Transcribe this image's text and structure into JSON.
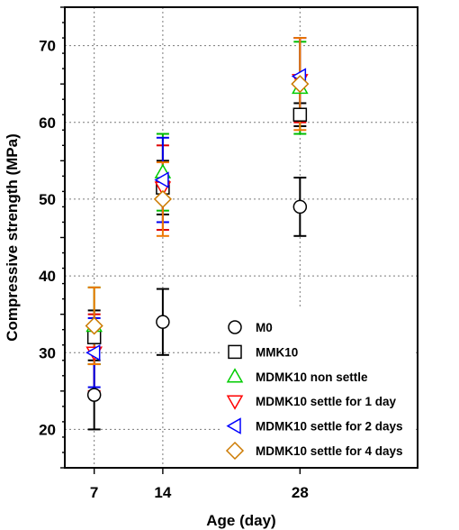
{
  "chart_data": {
    "type": "scatter",
    "title": "",
    "xlabel": "Age (day)",
    "ylabel": "Compressive strength (MPa)",
    "xlim": [
      4,
      40
    ],
    "ylim": [
      15,
      75
    ],
    "x_ticks": [
      7,
      14,
      28
    ],
    "y_ticks": [
      20,
      30,
      40,
      50,
      60,
      70
    ],
    "grid": true,
    "legend_position": "bottom-right",
    "series": [
      {
        "name": "M0",
        "marker": "circle",
        "color": "#000000",
        "error_color": "#000000",
        "points": [
          {
            "x": 7,
            "y": 24.5,
            "err": 4.5
          },
          {
            "x": 14,
            "y": 34,
            "err": 4.3
          },
          {
            "x": 28,
            "y": 49,
            "err": 3.8
          }
        ]
      },
      {
        "name": "MMK10",
        "marker": "square",
        "color": "#000000",
        "error_color": "#000000",
        "points": [
          {
            "x": 7,
            "y": 32,
            "err": 3.5
          },
          {
            "x": 14,
            "y": 51.5,
            "err": 3.5
          },
          {
            "x": 28,
            "y": 61,
            "err": 1.5
          }
        ]
      },
      {
        "name": "MDMK10 non settle",
        "marker": "triangle-up",
        "color": "#00cc00",
        "error_color": "#00bb00",
        "points": [
          {
            "x": 7,
            "y": 33.5,
            "err": 5
          },
          {
            "x": 14,
            "y": 53.5,
            "err": 5
          },
          {
            "x": 28,
            "y": 64.5,
            "err": 6
          }
        ]
      },
      {
        "name": "MDMK10 settle for 1 day",
        "marker": "triangle-down",
        "color": "#ff0000",
        "error_color": "#dd0000",
        "points": [
          {
            "x": 7,
            "y": 30,
            "err": 5
          },
          {
            "x": 14,
            "y": 51.5,
            "err": 5.5
          },
          {
            "x": 28,
            "y": 65.5,
            "err": 5.5
          }
        ]
      },
      {
        "name": "MDMK10 settle for 2 days",
        "marker": "triangle-left",
        "color": "#0000ff",
        "error_color": "#0000ee",
        "points": [
          {
            "x": 7,
            "y": 30,
            "err": 4.5
          },
          {
            "x": 14,
            "y": 52.5,
            "err": 5.5
          },
          {
            "x": 28,
            "y": 66,
            "err": 5
          }
        ]
      },
      {
        "name": "MDMK10 settle for 4 days",
        "marker": "diamond",
        "color": "#cc7a00",
        "error_color": "#ee7700",
        "points": [
          {
            "x": 7,
            "y": 33.5,
            "err": 5
          },
          {
            "x": 14,
            "y": 50,
            "err": 4.8
          },
          {
            "x": 28,
            "y": 65,
            "err": 6
          }
        ]
      }
    ]
  }
}
